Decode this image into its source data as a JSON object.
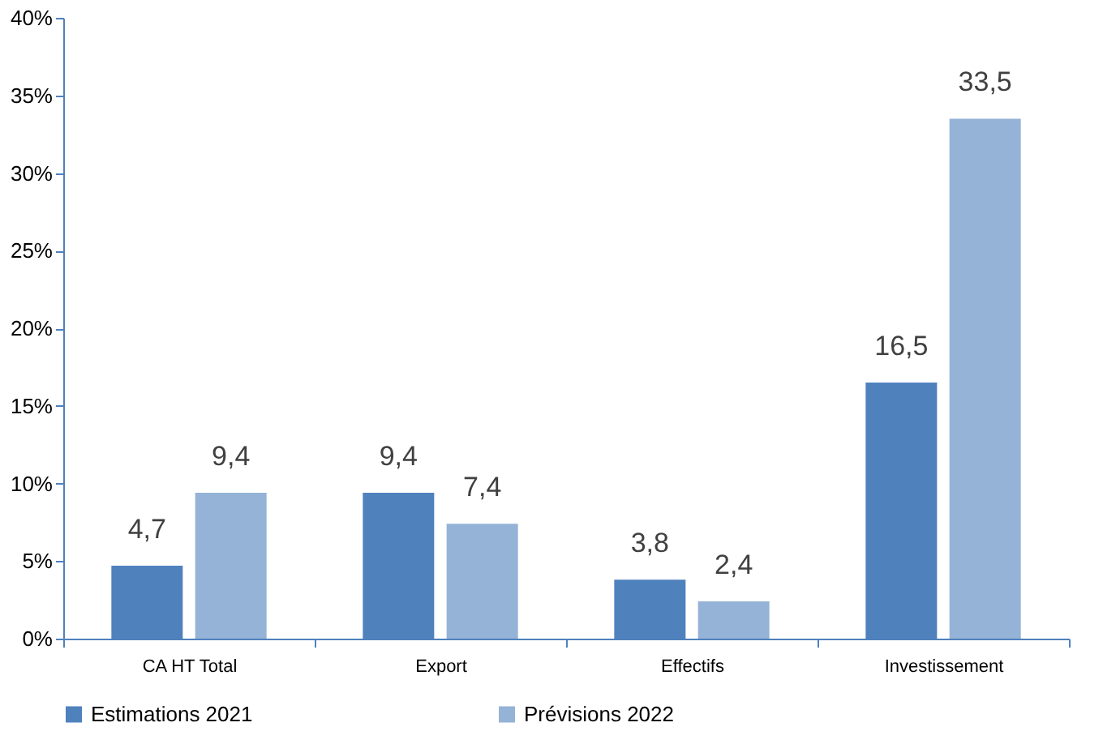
{
  "chart_data": {
    "type": "bar",
    "categories": [
      "CA HT Total",
      "Export",
      "Effectifs",
      "Investissement"
    ],
    "series": [
      {
        "name": "Estimations 2021",
        "color": "#4f81bd",
        "values": [
          4.7,
          9.4,
          3.8,
          16.5
        ],
        "value_labels": [
          "4,7",
          "9,4",
          "3,8",
          "16,5"
        ]
      },
      {
        "name": "Prévisions 2022",
        "color": "#95b3d7",
        "values": [
          9.4,
          7.4,
          2.4,
          33.5
        ],
        "value_labels": [
          "9,4",
          "7,4",
          "2,4",
          "33,5"
        ]
      }
    ],
    "ylim": [
      0,
      40
    ],
    "yticks": [
      {
        "value": 0,
        "label": "0%"
      },
      {
        "value": 5,
        "label": "5%"
      },
      {
        "value": 10,
        "label": "10%"
      },
      {
        "value": 15,
        "label": "15%"
      },
      {
        "value": 20,
        "label": "20%"
      },
      {
        "value": 25,
        "label": "25%"
      },
      {
        "value": 30,
        "label": "30%"
      },
      {
        "value": 35,
        "label": "35%"
      },
      {
        "value": 40,
        "label": "40%"
      }
    ],
    "grid": false,
    "legend": "bottom"
  }
}
